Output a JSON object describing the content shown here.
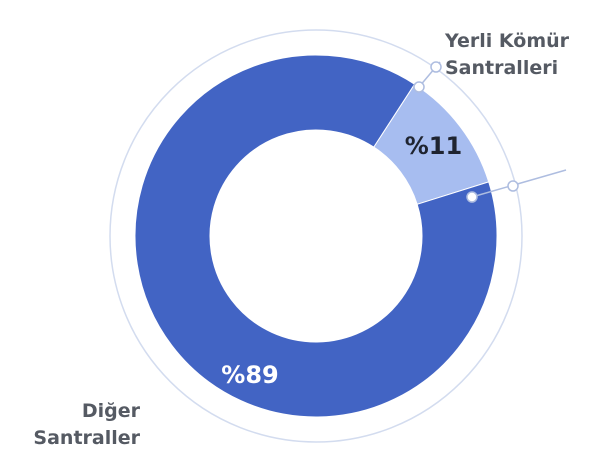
{
  "chart_data": {
    "type": "pie",
    "donut": true,
    "categories": [
      "Yerli Kömür Santralleri",
      "Diğer Santraller"
    ],
    "values": [
      11,
      89
    ],
    "value_labels": [
      "%11",
      "%89"
    ],
    "colors": [
      "#a7bdf0",
      "#4264c4"
    ]
  }
}
